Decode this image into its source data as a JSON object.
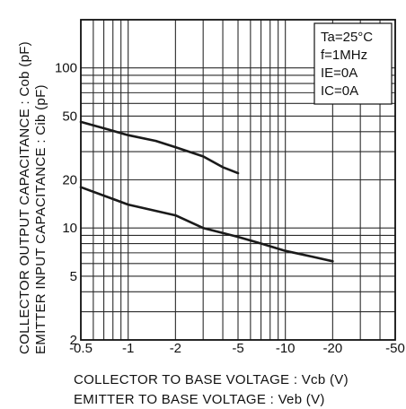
{
  "chart_data": {
    "type": "line",
    "x_scale": "log",
    "y_scale": "log",
    "xlim": [
      -0.5,
      -50
    ],
    "ylim": [
      2,
      200
    ],
    "grid": true,
    "x_ticks": [
      {
        "value": -0.5,
        "label": "-0.5"
      },
      {
        "value": -1,
        "label": "-1"
      },
      {
        "value": -2,
        "label": "-2"
      },
      {
        "value": -5,
        "label": "-5"
      },
      {
        "value": -10,
        "label": "-10"
      },
      {
        "value": -20,
        "label": "-20"
      },
      {
        "value": -50,
        "label": "-50"
      }
    ],
    "y_ticks": [
      {
        "value": 2,
        "label": "2"
      },
      {
        "value": 5,
        "label": "5"
      },
      {
        "value": 10,
        "label": "10"
      },
      {
        "value": 20,
        "label": "20"
      },
      {
        "value": 50,
        "label": "50"
      },
      {
        "value": 100,
        "label": "100"
      }
    ],
    "xlabel_lines": [
      "COLLECTOR TO BASE VOLTAGE : Vcb (V)",
      "EMITTER TO BASE VOLTAGE : Veb (V)"
    ],
    "ylabel_lines": [
      "COLLECTOR OUTPUT CAPACITANCE : Cob (pF)",
      "EMITTER INPUT CAPACITANCE : Cib (pF)"
    ],
    "conditions": [
      "Ta=25°C",
      "f=1MHz",
      "IE=0A",
      "IC=0A"
    ],
    "series": [
      {
        "x": [
          -0.5,
          -0.7,
          -1,
          -1.5,
          -2,
          -3,
          -4,
          -5
        ],
        "y": [
          46,
          42,
          38,
          35,
          32,
          28,
          24,
          22
        ]
      },
      {
        "x": [
          -0.5,
          -1,
          -2,
          -3,
          -5,
          -7,
          -10,
          -15,
          -20
        ],
        "y": [
          18,
          14,
          12,
          10,
          8.8,
          8,
          7.2,
          6.6,
          6.2
        ]
      }
    ]
  }
}
